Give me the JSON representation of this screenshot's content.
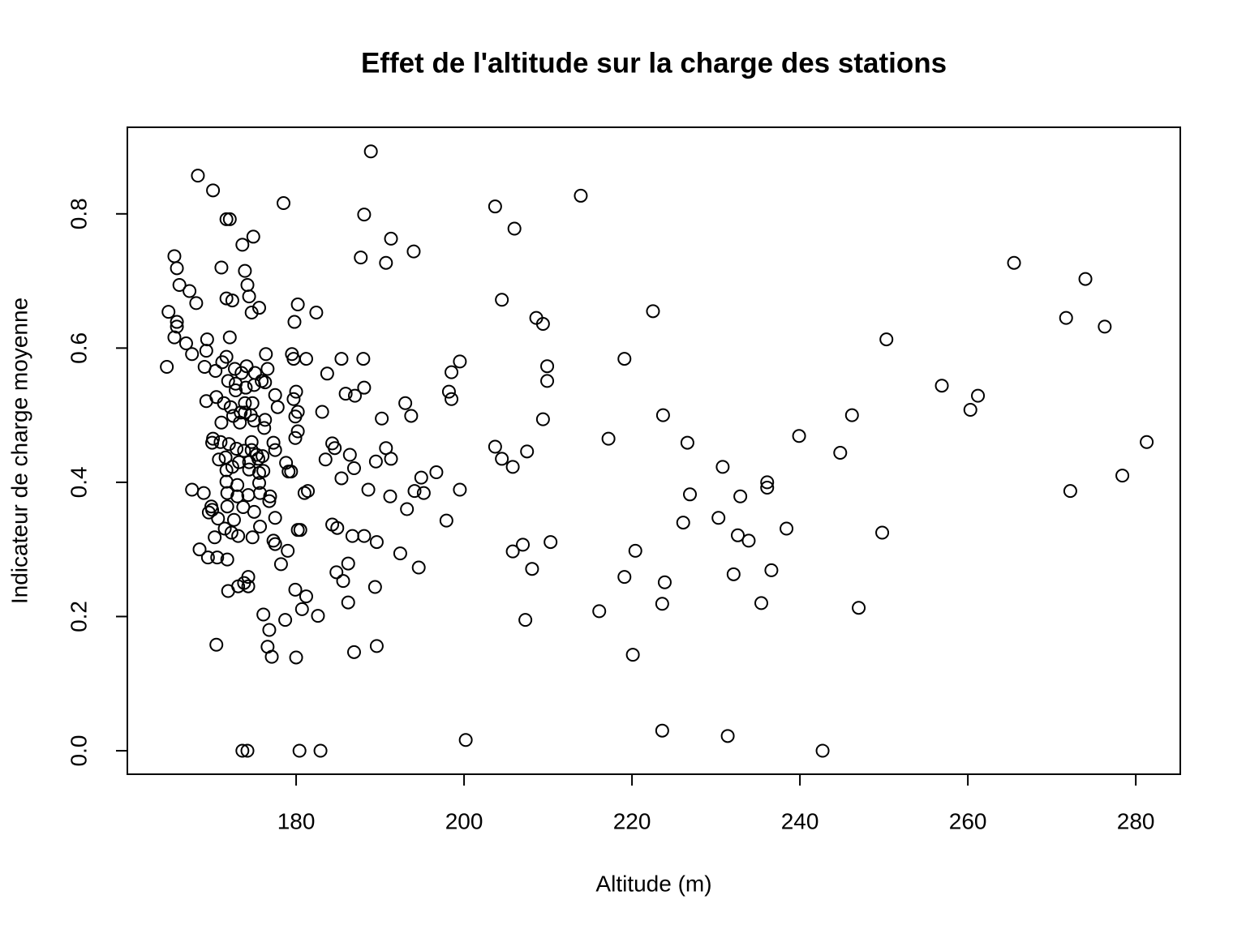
{
  "chart_data": {
    "type": "scatter",
    "title": "Effet de l'altitude sur la charge des stations",
    "x_label": "Altitude (m)",
    "y_label": "Indicateur de charge moyenne",
    "xlim": [
      159.9,
      285.3
    ],
    "ylim": [
      -0.035,
      0.929
    ],
    "xticks": [
      180,
      200,
      220,
      240,
      260,
      280
    ],
    "yticks": [
      {
        "value": 0,
        "label": "0.0"
      },
      0.2,
      0.4,
      0.6,
      0.8
    ],
    "grid": false,
    "color": "#000000",
    "x": [
      265.5,
      271.7,
      274.0,
      276.3,
      272.2,
      278.4,
      281.3,
      250.3,
      256.9,
      261.2,
      260.3,
      249.8,
      246.2,
      244.8,
      247.0,
      242.7,
      239.9,
      238.4,
      236.6,
      236.1,
      236.1,
      235.4,
      233.9,
      232.9,
      232.6,
      232.1,
      230.8,
      230.3,
      231.4,
      226.9,
      226.6,
      226.1,
      223.7,
      223.9,
      223.6,
      223.6,
      222.5,
      219.1,
      217.2,
      220.4,
      219.1,
      220.1,
      216.1,
      213.9,
      210.3,
      209.9,
      209.9,
      209.4,
      209.4,
      208.6,
      207.5,
      207.0,
      205.8,
      205.8,
      204.5,
      203.7,
      204.5,
      206.0,
      203.7,
      208.1,
      207.3,
      200.2,
      199.5,
      198.5,
      198.2,
      198.5,
      199.5,
      197.9,
      196.7,
      194.9,
      195.2,
      194.1,
      194.6,
      193.2,
      193.7,
      193.0,
      194.0,
      191.3,
      190.7,
      192.4,
      191.2,
      191.3,
      190.7,
      190.2,
      189.5,
      189.6,
      189.4,
      189.6,
      188.9,
      188.6,
      188.1,
      188.0,
      188.1,
      187.7,
      188.1,
      186.9,
      187.0,
      185.9,
      186.4,
      186.7,
      186.2,
      186.2,
      186.9,
      185.4,
      185.4,
      184.9,
      184.3,
      184.8,
      185.6,
      184.3,
      184.6,
      183.7,
      183.5,
      183.1,
      182.9,
      182.6,
      182.4,
      181.4,
      181.0,
      181.2,
      181.2,
      180.7,
      180.4,
      180.2,
      180.2,
      180.2,
      180.0,
      179.9,
      179.7,
      179.9,
      179.8,
      179.5,
      179.7,
      180.2,
      180.5,
      179.9,
      180.0,
      179.4,
      179.1,
      178.5,
      178.8,
      179.0,
      178.7,
      178.2,
      177.8,
      177.5,
      177.5,
      177.3,
      177.5,
      177.5,
      177.3,
      177.1,
      176.8,
      176.6,
      176.1,
      176.9,
      176.8,
      176.6,
      176.4,
      176.3,
      176.3,
      175.9,
      176.1,
      176.0,
      176.2,
      175.6,
      175.7,
      175.7,
      175.6,
      175.6,
      175.5,
      175.3,
      175.1,
      175.0,
      175.0,
      175.0,
      174.9,
      174.8,
      174.7,
      174.7,
      174.8,
      174.7,
      174.6,
      174.4,
      174.4,
      174.4,
      174.3,
      174.3,
      174.3,
      174.2,
      174.2,
      174.1,
      174.0,
      173.9,
      173.9,
      173.9,
      173.8,
      173.8,
      173.7,
      173.6,
      173.6,
      173.5,
      173.4,
      173.3,
      173.2,
      173.1,
      173.1,
      173.0,
      173.0,
      172.9,
      172.8,
      172.8,
      172.7,
      172.6,
      172.5,
      172.4,
      172.4,
      172.3,
      172.2,
      172.1,
      172.1,
      172.0,
      171.9,
      171.7,
      171.8,
      171.8,
      171.7,
      171.7,
      171.7,
      171.7,
      171.6,
      171.5,
      171.9,
      171.8,
      171.4,
      171.2,
      171.1,
      171.1,
      171.0,
      170.8,
      170.7,
      170.6,
      170.5,
      170.5,
      170.4,
      170.3,
      170.1,
      170.0,
      170.1,
      170.0,
      169.9,
      169.6,
      169.5,
      169.3,
      169.4,
      169.3,
      169.1,
      169.0,
      168.5,
      168.3,
      168.1,
      167.6,
      167.6,
      167.3,
      166.9,
      166.1,
      165.8,
      165.5,
      165.5,
      165.8,
      165.8,
      164.8,
      164.6
    ],
    "values": [
      0.727,
      0.645,
      0.703,
      0.632,
      0.387,
      0.41,
      0.46,
      0.613,
      0.544,
      0.529,
      0.508,
      0.325,
      0.5,
      0.444,
      0.213,
      0.0,
      0.469,
      0.331,
      0.269,
      0.4,
      0.392,
      0.22,
      0.313,
      0.379,
      0.321,
      0.263,
      0.423,
      0.347,
      0.022,
      0.382,
      0.459,
      0.34,
      0.5,
      0.251,
      0.219,
      0.03,
      0.655,
      0.584,
      0.465,
      0.298,
      0.259,
      0.143,
      0.208,
      0.827,
      0.311,
      0.573,
      0.551,
      0.494,
      0.636,
      0.645,
      0.446,
      0.307,
      0.297,
      0.423,
      0.435,
      0.453,
      0.672,
      0.778,
      0.811,
      0.271,
      0.195,
      0.016,
      0.58,
      0.564,
      0.535,
      0.524,
      0.389,
      0.343,
      0.415,
      0.407,
      0.384,
      0.387,
      0.273,
      0.36,
      0.499,
      0.518,
      0.744,
      0.763,
      0.727,
      0.294,
      0.379,
      0.435,
      0.451,
      0.495,
      0.431,
      0.311,
      0.244,
      0.156,
      0.893,
      0.389,
      0.799,
      0.584,
      0.541,
      0.735,
      0.32,
      0.421,
      0.529,
      0.532,
      0.441,
      0.32,
      0.279,
      0.221,
      0.147,
      0.406,
      0.584,
      0.332,
      0.337,
      0.266,
      0.253,
      0.458,
      0.451,
      0.562,
      0.434,
      0.505,
      0.0,
      0.201,
      0.653,
      0.387,
      0.384,
      0.584,
      0.23,
      0.211,
      0.0,
      0.665,
      0.476,
      0.505,
      0.535,
      0.498,
      0.524,
      0.466,
      0.639,
      0.591,
      0.584,
      0.329,
      0.329,
      0.24,
      0.139,
      0.416,
      0.416,
      0.816,
      0.429,
      0.298,
      0.195,
      0.278,
      0.512,
      0.53,
      0.448,
      0.459,
      0.347,
      0.308,
      0.313,
      0.14,
      0.18,
      0.155,
      0.203,
      0.379,
      0.372,
      0.569,
      0.591,
      0.549,
      0.493,
      0.551,
      0.417,
      0.439,
      0.481,
      0.66,
      0.334,
      0.384,
      0.414,
      0.399,
      0.435,
      0.441,
      0.563,
      0.545,
      0.492,
      0.356,
      0.766,
      0.518,
      0.46,
      0.448,
      0.318,
      0.653,
      0.5,
      0.43,
      0.419,
      0.677,
      0.381,
      0.259,
      0.245,
      0.694,
      0.0,
      0.573,
      0.541,
      0.518,
      0.715,
      0.504,
      0.25,
      0.447,
      0.363,
      0.754,
      0.0,
      0.563,
      0.504,
      0.489,
      0.43,
      0.245,
      0.32,
      0.379,
      0.396,
      0.45,
      0.547,
      0.537,
      0.569,
      0.344,
      0.499,
      0.671,
      0.423,
      0.325,
      0.512,
      0.792,
      0.616,
      0.457,
      0.551,
      0.792,
      0.364,
      0.384,
      0.418,
      0.587,
      0.674,
      0.401,
      0.437,
      0.331,
      0.238,
      0.285,
      0.518,
      0.579,
      0.72,
      0.489,
      0.46,
      0.434,
      0.346,
      0.288,
      0.158,
      0.527,
      0.566,
      0.318,
      0.835,
      0.359,
      0.465,
      0.459,
      0.364,
      0.355,
      0.288,
      0.521,
      0.613,
      0.596,
      0.572,
      0.384,
      0.3,
      0.857,
      0.667,
      0.389,
      0.591,
      0.685,
      0.607,
      0.694,
      0.719,
      0.737,
      0.616,
      0.632,
      0.639,
      0.654,
      0.572
    ]
  }
}
